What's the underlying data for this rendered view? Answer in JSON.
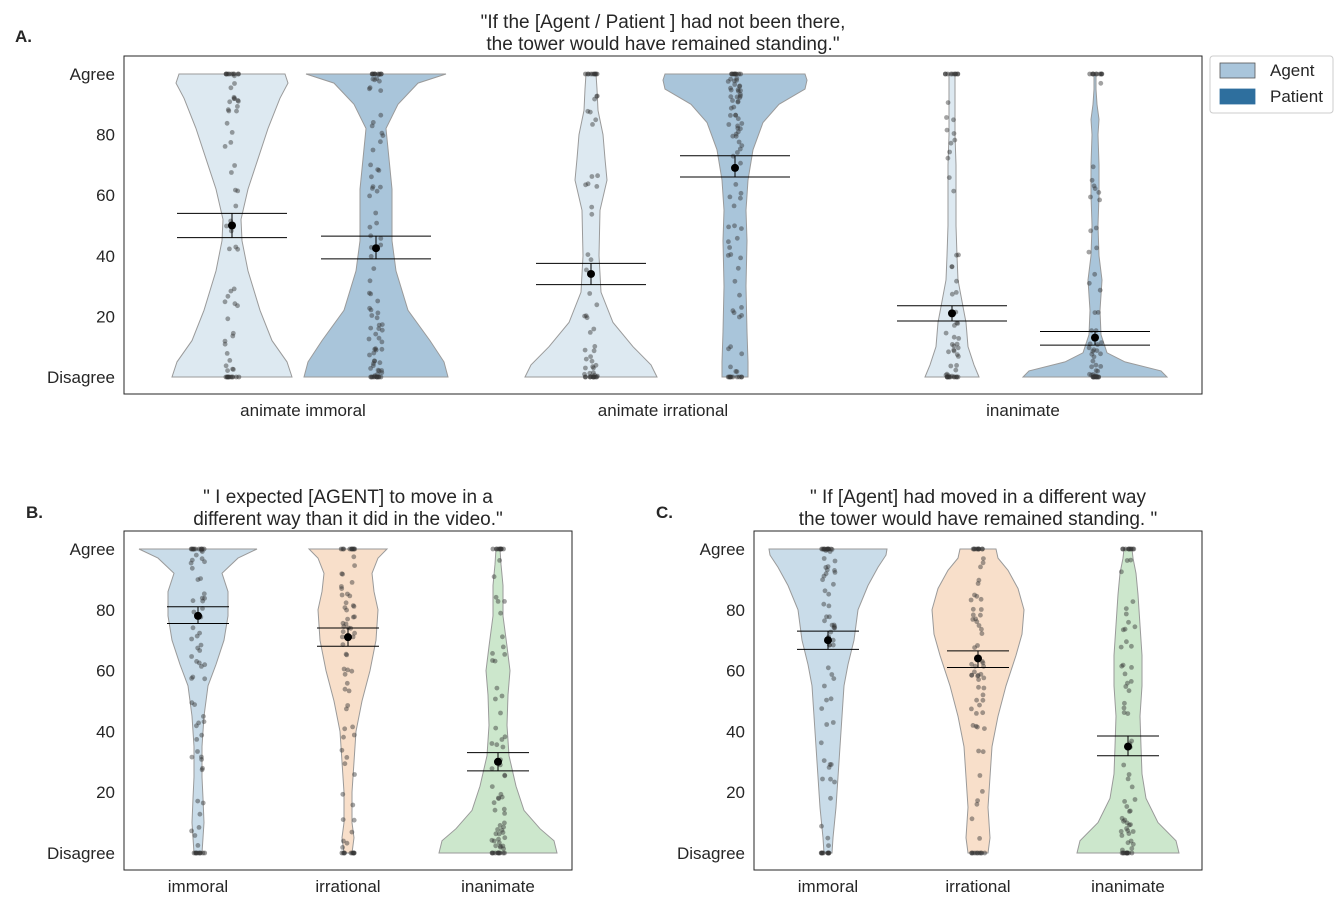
{
  "panels": [
    {
      "letter": "A.",
      "title_lines": [
        "\"If the [Agent / Patient ] had not been there,",
        "the tower would have remained standing.\""
      ]
    },
    {
      "letter": "B.",
      "title_lines": [
        "\" I expected [AGENT] to move in a",
        "different way than it did in the video.\""
      ]
    },
    {
      "letter": "C.",
      "title_lines": [
        "\" If [Agent] had moved in a different way",
        "the tower would have remained standing. \""
      ]
    }
  ],
  "legend": {
    "items": [
      {
        "label": "Agent",
        "color": "#a9c5db"
      },
      {
        "label": "Patient",
        "color": "#2e6f9e"
      }
    ]
  },
  "colors": {
    "agent": "#dde9f1",
    "patient": "#a9c5da",
    "immoral": "#c9dce9",
    "irrational": "#f8dfca",
    "inanimate": "#cce7cc",
    "mean_marker": "#000000",
    "violin_edge": "#9a9a9a"
  },
  "chart_data": [
    {
      "type": "violin",
      "panel": "A",
      "categories": [
        "animate immoral",
        "animate irrational",
        "inanimate"
      ],
      "y_tick_labels": {
        "0": "Disagree",
        "20": "20",
        "40": "40",
        "60": "60",
        "80": "80",
        "100": "Agree"
      },
      "ylim": [
        -5,
        106
      ],
      "series": [
        {
          "name": "Agent",
          "means": [
            50,
            34,
            21
          ],
          "ci": [
            [
              46,
              54
            ],
            [
              30.5,
              37.5
            ],
            [
              18.5,
              23.5
            ]
          ]
        },
        {
          "name": "Patient",
          "means": [
            42.5,
            69,
            13
          ],
          "ci": [
            [
              39,
              46.5
            ],
            [
              66,
              73
            ],
            [
              10.5,
              15
            ]
          ]
        }
      ]
    },
    {
      "type": "violin",
      "panel": "B",
      "categories": [
        "immoral",
        "irrational",
        "inanimate"
      ],
      "y_tick_labels": {
        "0": "Disagree",
        "20": "20",
        "40": "40",
        "60": "60",
        "80": "80",
        "100": "Agree"
      },
      "ylim": [
        -5,
        106
      ],
      "means": [
        78,
        71,
        30
      ],
      "ci": [
        [
          75.5,
          81
        ],
        [
          68,
          74
        ],
        [
          27,
          33
        ]
      ]
    },
    {
      "type": "violin",
      "panel": "C",
      "categories": [
        "immoral",
        "irrational",
        "inanimate"
      ],
      "y_tick_labels": {
        "0": "Disagree",
        "20": "20",
        "40": "40",
        "60": "60",
        "80": "80",
        "100": "Agree"
      },
      "ylim": [
        -5,
        106
      ],
      "means": [
        70,
        64,
        35
      ],
      "ci": [
        [
          67,
          73
        ],
        [
          61,
          66.5
        ],
        [
          32,
          38.5
        ]
      ]
    }
  ]
}
